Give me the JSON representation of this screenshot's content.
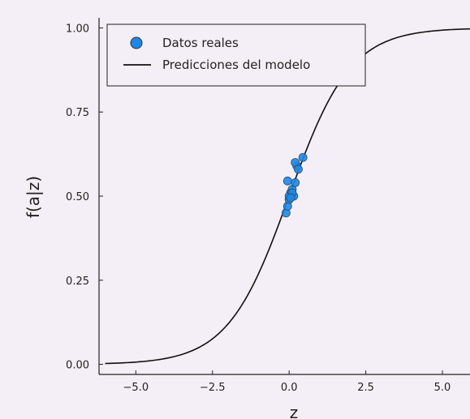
{
  "chart_data": {
    "type": "scatter",
    "xlabel": "z",
    "ylabel": "f(a|z)",
    "xlim": [
      -6.2,
      5.9
    ],
    "ylim": [
      -0.03,
      1.03
    ],
    "x_ticks": [
      -5.0,
      -2.5,
      0.0,
      2.5,
      5.0
    ],
    "x_tick_labels": [
      "−5.0",
      "−2.5",
      "0.0",
      "2.5",
      "5.0"
    ],
    "y_ticks": [
      0.0,
      0.25,
      0.5,
      0.75,
      1.0
    ],
    "y_tick_labels": [
      "0.00",
      "0.25",
      "0.50",
      "0.75",
      "1.00"
    ],
    "grid": false,
    "legend_position": "top-left",
    "series": [
      {
        "name": "Datos reales",
        "kind": "scatter",
        "color": "#1e88e5",
        "x": [
          -0.1,
          -0.05,
          0.0,
          0.05,
          0.1,
          0.15,
          0.2,
          0.25,
          0.45,
          0.2,
          0.3,
          -0.05,
          0.0,
          0.1,
          0.05
        ],
        "y": [
          0.45,
          0.47,
          0.49,
          0.51,
          0.52,
          0.5,
          0.54,
          0.59,
          0.615,
          0.6,
          0.58,
          0.545,
          0.5,
          0.51,
          0.495
        ]
      },
      {
        "name": "Predicciones del modelo",
        "kind": "line",
        "color": "#111111",
        "function": "logistic",
        "slope": 1,
        "x_range": [
          -6,
          6
        ]
      }
    ]
  }
}
